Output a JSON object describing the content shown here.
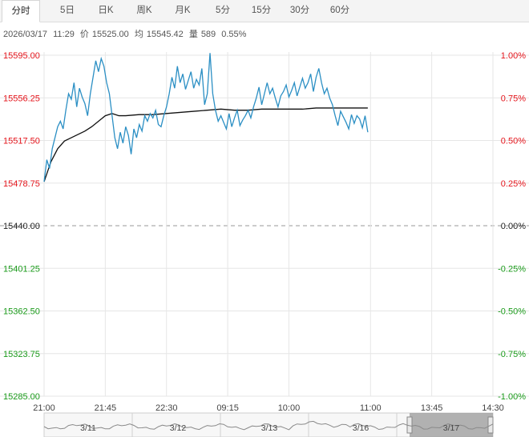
{
  "tabs": [
    "分时",
    "5日",
    "日K",
    "周K",
    "月K",
    "5分",
    "15分",
    "30分",
    "60分"
  ],
  "active_tab": 0,
  "quote": {
    "date": "2026/03/17",
    "time": "11:29",
    "price_label": "价",
    "price": "15525.00",
    "avg_label": "均",
    "avg": "15545.42",
    "volume_label": "量",
    "volume": "589",
    "change": "0.55%"
  },
  "colors": {
    "up": "#e4141b",
    "down": "#1a9a1a",
    "neutral": "#222222",
    "price_line": "#2b8fc4",
    "avg_line": "#111111",
    "grid": "#e6e6e6"
  },
  "navigator": {
    "labels": [
      "3/11",
      "3/12",
      "3/13",
      "3/16",
      "3/17"
    ]
  },
  "chart_data": {
    "type": "line",
    "title": "",
    "base_price": 15440.0,
    "ylim": [
      15285.0,
      15595.0
    ],
    "y_ticks": [
      "15595.00",
      "15556.25",
      "15517.50",
      "15478.75",
      "15440.00",
      "15401.25",
      "15362.50",
      "15323.75",
      "15285.00"
    ],
    "pct_ticks": [
      "1.00%",
      "0.75%",
      "0.50%",
      "0.25%",
      "0.00%",
      "-0.25%",
      "-0.50%",
      "-0.75%",
      "-1.00%"
    ],
    "x_ticks": [
      "21:00",
      "21:45",
      "22:30",
      "09:15",
      "10:00",
      "11:00",
      "13:45",
      "14:30"
    ],
    "x_tick_minutes": [
      0,
      45,
      90,
      135,
      180,
      240,
      285,
      330
    ],
    "x_range": [
      0,
      330
    ],
    "series": [
      {
        "x": [
          0,
          2,
          4,
          6,
          8,
          10,
          12,
          14,
          16,
          18,
          20,
          22,
          24,
          26,
          28,
          30,
          32,
          34,
          36,
          38,
          40,
          42,
          44,
          46,
          48,
          50,
          52,
          54,
          56,
          58,
          60,
          62,
          64,
          66,
          68,
          70,
          72,
          74,
          76,
          78,
          80,
          82,
          84,
          86,
          88,
          90,
          92,
          94,
          96,
          98,
          100,
          102,
          104,
          106,
          108,
          110,
          112,
          114,
          116,
          118,
          120,
          122,
          124,
          126,
          128,
          130,
          132,
          134,
          136,
          138,
          140,
          142,
          144,
          146,
          148,
          150,
          152,
          154,
          156,
          158,
          160,
          162,
          164,
          166,
          168,
          170,
          172,
          174,
          176,
          178,
          180,
          182,
          184,
          186,
          188,
          190,
          192,
          194,
          196,
          198,
          200,
          202,
          204,
          206,
          208,
          210,
          212,
          214,
          216,
          218,
          220,
          222,
          224,
          226,
          228,
          230,
          232,
          234,
          236,
          238
        ],
        "values": [
          15480,
          15500,
          15492,
          15510,
          15520,
          15530,
          15535,
          15528,
          15545,
          15560,
          15555,
          15570,
          15548,
          15565,
          15557,
          15551,
          15540,
          15560,
          15575,
          15590,
          15580,
          15592,
          15585,
          15570,
          15560,
          15540,
          15520,
          15510,
          15525,
          15515,
          15530,
          15522,
          15505,
          15528,
          15520,
          15532,
          15526,
          15540,
          15535,
          15542,
          15538,
          15545,
          15532,
          15530,
          15540,
          15548,
          15560,
          15575,
          15565,
          15585,
          15570,
          15578,
          15564,
          15572,
          15580,
          15565,
          15573,
          15568,
          15583,
          15550,
          15560,
          15597,
          15560,
          15545,
          15535,
          15540,
          15534,
          15528,
          15542,
          15530,
          15538,
          15545,
          15531,
          15536,
          15540,
          15545,
          15538,
          15548,
          15556,
          15566,
          15550,
          15560,
          15570,
          15560,
          15565,
          15556,
          15548,
          15558,
          15562,
          15568,
          15557,
          15563,
          15570,
          15558,
          15566,
          15574,
          15565,
          15570,
          15578,
          15562,
          15575,
          15583,
          15570,
          15560,
          15565,
          15556,
          15550,
          15540,
          15531,
          15544,
          15539,
          15534,
          15528,
          15541,
          15533,
          15540,
          15537,
          15529,
          15540,
          15525
        ]
      },
      {
        "x": [
          0,
          5,
          10,
          15,
          20,
          25,
          30,
          35,
          40,
          45,
          50,
          55,
          60,
          70,
          80,
          90,
          100,
          110,
          120,
          130,
          140,
          150,
          160,
          170,
          180,
          190,
          200,
          210,
          220,
          230,
          238
        ],
        "values": [
          15480,
          15498,
          15510,
          15517,
          15520,
          15523,
          15526,
          15530,
          15535,
          15540,
          15542,
          15540,
          15540,
          15541,
          15541,
          15542,
          15543,
          15544,
          15545,
          15546,
          15545,
          15545,
          15546,
          15546,
          15546,
          15546,
          15547,
          15547,
          15547,
          15547,
          15547
        ]
      }
    ]
  }
}
